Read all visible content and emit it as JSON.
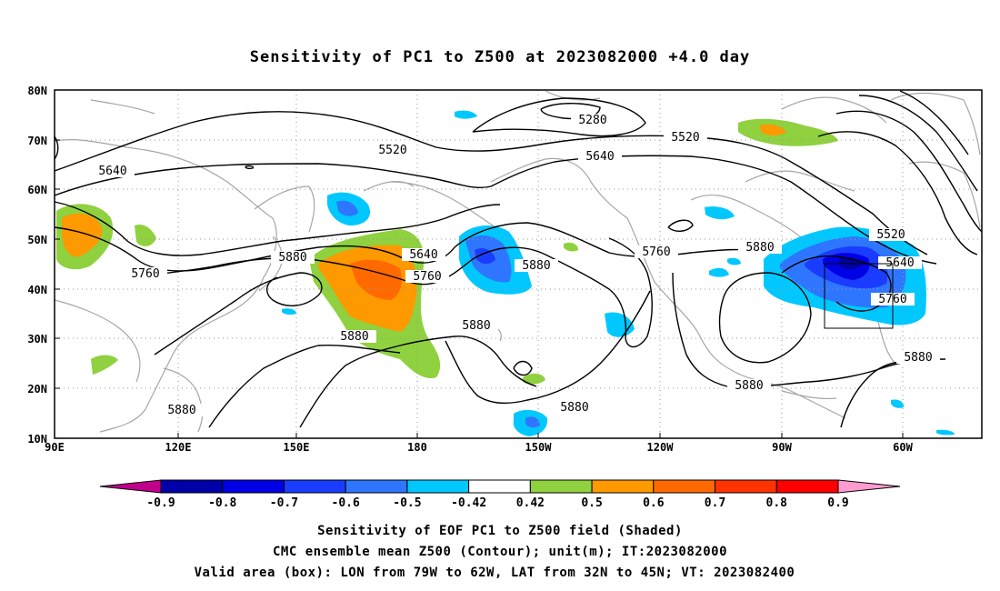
{
  "title": "Sensitivity of PC1 to Z500 at 2023082000 +4.0 day",
  "lon_ticks": [
    "90E",
    "120E",
    "150E",
    "180",
    "150W",
    "120W",
    "90W",
    "60W"
  ],
  "lat_ticks": [
    "80N",
    "70N",
    "60N",
    "50N",
    "40N",
    "30N",
    "20N",
    "10N"
  ],
  "contour_labels": [
    "5280",
    "5520",
    "5520",
    "5640",
    "5640",
    "5760",
    "5880",
    "5880",
    "5880",
    "5880",
    "5640",
    "5760",
    "5880",
    "5760",
    "5880",
    "5880",
    "5520",
    "5640",
    "5760",
    "5880",
    "5880"
  ],
  "colorbar": {
    "labels": [
      "-0.9",
      "-0.8",
      "-0.7",
      "-0.6",
      "-0.5",
      "-0.42",
      "0.42",
      "0.5",
      "0.6",
      "0.7",
      "0.8",
      "0.9"
    ],
    "colors": [
      "#0000a8",
      "#0000e6",
      "#1a3cff",
      "#2e76ff",
      "#00c8ff",
      "#ffffff",
      "#8fd13f",
      "#ff9900",
      "#ff6a00",
      "#ff3300",
      "#ff0000"
    ],
    "under_color": "#c0008a",
    "over_color": "#ff9ccf"
  },
  "captions": [
    "Sensitivity of EOF PC1 to Z500 field (Shaded)",
    "CMC ensemble mean Z500 (Contour); unit(m); IT:2023082000",
    "Valid area (box): LON from 79W to 62W, LAT from 32N to 45N; VT: 2023082400"
  ]
}
